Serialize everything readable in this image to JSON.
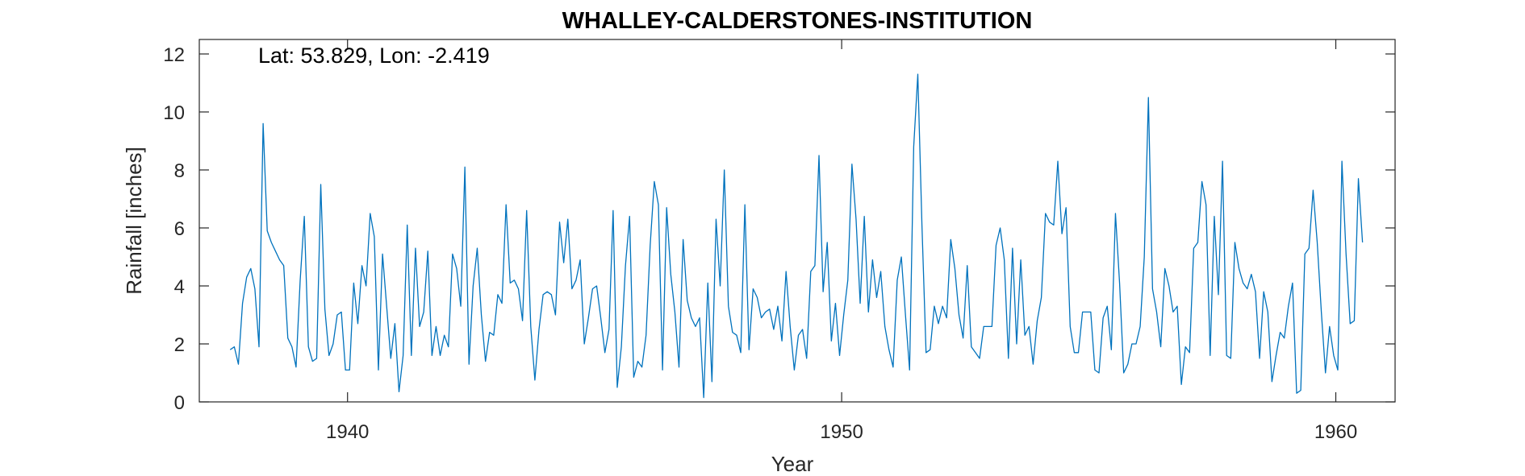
{
  "chart_data": {
    "type": "line",
    "title": "WHALLEY-CALDERSTONES-INSTITUTION",
    "annotation": "Lat: 53.829, Lon: -2.419",
    "xlabel": "Year",
    "ylabel": "Rainfall [inches]",
    "xlim": [
      1937.0,
      1961.2
    ],
    "ylim": [
      0,
      12.5
    ],
    "xticks": [
      1940,
      1950,
      1960
    ],
    "yticks": [
      0,
      2,
      4,
      6,
      8,
      10,
      12
    ],
    "grid": false,
    "series": [
      {
        "color": "#0072BD",
        "x_start": 1937.625,
        "x_step": 0.08333,
        "values": [
          1.8,
          1.9,
          1.3,
          3.4,
          4.3,
          4.6,
          3.9,
          1.9,
          9.6,
          5.9,
          5.5,
          5.2,
          4.9,
          4.7,
          2.2,
          1.9,
          1.2,
          4.2,
          6.4,
          1.9,
          1.4,
          1.5,
          7.5,
          3.2,
          1.6,
          2.0,
          3.0,
          3.1,
          1.1,
          1.1,
          4.1,
          2.7,
          4.7,
          4.0,
          6.5,
          5.7,
          1.1,
          5.1,
          3.3,
          1.5,
          2.7,
          0.35,
          1.6,
          6.1,
          1.6,
          5.3,
          2.6,
          3.1,
          5.2,
          1.6,
          2.6,
          1.6,
          2.3,
          1.9,
          5.1,
          4.6,
          3.3,
          8.1,
          1.3,
          4.0,
          5.3,
          3.0,
          1.4,
          2.4,
          2.3,
          3.7,
          3.4,
          6.8,
          4.1,
          4.2,
          3.9,
          2.8,
          6.6,
          2.6,
          0.75,
          2.5,
          3.7,
          3.8,
          3.7,
          3.0,
          6.2,
          4.8,
          6.3,
          3.9,
          4.2,
          4.9,
          2.0,
          2.9,
          3.9,
          4.0,
          2.9,
          1.7,
          2.5,
          6.6,
          0.5,
          1.9,
          4.7,
          6.4,
          0.85,
          1.4,
          1.2,
          2.3,
          5.4,
          7.6,
          6.8,
          1.1,
          6.7,
          4.4,
          3.1,
          1.2,
          5.6,
          3.5,
          2.9,
          2.6,
          2.9,
          0.15,
          4.1,
          0.7,
          6.3,
          4.0,
          8.0,
          3.3,
          2.4,
          2.3,
          1.7,
          6.8,
          1.8,
          3.9,
          3.6,
          2.9,
          3.1,
          3.2,
          2.5,
          3.3,
          2.1,
          4.5,
          2.6,
          1.1,
          2.3,
          2.5,
          1.5,
          4.5,
          4.7,
          8.5,
          3.8,
          5.5,
          2.1,
          3.4,
          1.6,
          3.0,
          4.2,
          8.2,
          6.3,
          3.4,
          6.4,
          3.1,
          4.9,
          3.6,
          4.5,
          2.6,
          1.8,
          1.2,
          4.2,
          5.0,
          3.0,
          1.1,
          8.8,
          11.3,
          6.1,
          1.7,
          1.8,
          3.3,
          2.7,
          3.3,
          2.9,
          5.6,
          4.6,
          3.0,
          2.2,
          4.7,
          1.9,
          1.7,
          1.5,
          2.6,
          2.6,
          2.6,
          5.4,
          6.0,
          4.9,
          1.5,
          5.3,
          2.0,
          4.9,
          2.3,
          2.6,
          1.3,
          2.8,
          3.6,
          6.5,
          6.2,
          6.1,
          8.3,
          5.8,
          6.7,
          2.6,
          1.7,
          1.7,
          3.1,
          3.1,
          3.1,
          1.1,
          1.0,
          2.9,
          3.3,
          1.8,
          6.5,
          4.1,
          1.0,
          1.3,
          2.0,
          2.0,
          2.6,
          5.0,
          10.5,
          3.9,
          3.1,
          1.9,
          4.6,
          4.0,
          3.1,
          3.3,
          0.6,
          1.9,
          1.7,
          5.3,
          5.5,
          7.6,
          6.8,
          1.6,
          6.4,
          3.7,
          8.3,
          1.6,
          1.5,
          5.5,
          4.6,
          4.1,
          3.9,
          4.4,
          3.8,
          1.5,
          3.8,
          3.1,
          0.7,
          1.6,
          2.4,
          2.2,
          3.3,
          4.1,
          0.3,
          0.4,
          5.1,
          5.3,
          7.3,
          5.5,
          3.1,
          1.0,
          2.6,
          1.6,
          1.1,
          8.3,
          5.1,
          2.7,
          2.8,
          7.7,
          5.5
        ]
      }
    ]
  }
}
